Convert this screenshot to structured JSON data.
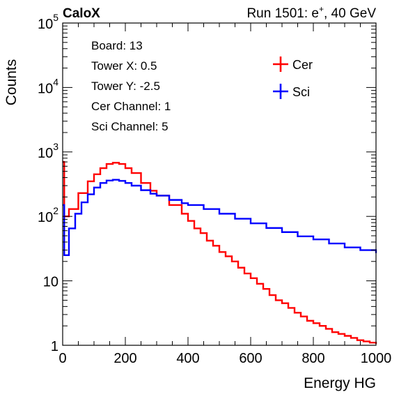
{
  "header": {
    "experiment": "CaloX",
    "run_prefix": "Run 1501: e",
    "run_sup": "+",
    "run_suffix": ", 40 GeV"
  },
  "info_lines": [
    "Board: 13",
    "Tower X: 0.5",
    "Tower Y: -2.5",
    "Cer Channel: 1",
    "Sci Channel: 5"
  ],
  "chart_data": {
    "type": "line",
    "xlabel": "Energy HG",
    "ylabel": "Counts",
    "xlim": [
      0,
      1000
    ],
    "ylim": [
      1,
      100000
    ],
    "yscale": "log",
    "x_ticks": [
      0,
      200,
      400,
      600,
      800,
      1000
    ],
    "y_ticks": [
      {
        "base": "1",
        "exp": ""
      },
      {
        "base": "10",
        "exp": ""
      },
      {
        "base": "10",
        "exp": "2"
      },
      {
        "base": "10",
        "exp": "3"
      },
      {
        "base": "10",
        "exp": "4"
      },
      {
        "base": "10",
        "exp": "5"
      }
    ],
    "legend_position": "top-right",
    "series": [
      {
        "name": "Cer",
        "color": "#ff0000",
        "x": [
          0,
          5,
          20,
          50,
          80,
          100,
          120,
          140,
          160,
          180,
          200,
          220,
          250,
          280,
          300,
          340,
          380,
          400,
          420,
          440,
          460,
          480,
          500,
          520,
          540,
          560,
          580,
          600,
          620,
          640,
          660,
          680,
          700,
          720,
          740,
          760,
          780,
          800,
          820,
          840,
          860,
          880,
          900,
          920,
          940,
          960,
          980,
          1000
        ],
        "y": [
          700,
          100,
          130,
          230,
          350,
          450,
          560,
          650,
          680,
          650,
          560,
          470,
          330,
          250,
          210,
          150,
          110,
          85,
          65,
          55,
          42,
          35,
          28,
          24,
          20,
          16,
          13,
          11,
          9,
          7.5,
          6,
          5,
          4.5,
          3.8,
          3.2,
          2.8,
          2.4,
          2.2,
          2,
          1.8,
          1.6,
          1.5,
          1.4,
          1.3,
          1.2,
          1.15,
          1.1,
          1.05
        ]
      },
      {
        "name": "Sci",
        "color": "#0000ff",
        "x": [
          0,
          5,
          20,
          40,
          60,
          80,
          100,
          120,
          140,
          160,
          180,
          200,
          220,
          250,
          280,
          300,
          340,
          380,
          400,
          450,
          500,
          550,
          600,
          650,
          700,
          750,
          800,
          850,
          900,
          950,
          1000
        ],
        "y": [
          150,
          25,
          65,
          110,
          165,
          220,
          280,
          330,
          360,
          370,
          355,
          330,
          300,
          255,
          225,
          210,
          180,
          160,
          150,
          130,
          110,
          92,
          78,
          66,
          57,
          49,
          44,
          38,
          33,
          30,
          27
        ]
      }
    ]
  }
}
